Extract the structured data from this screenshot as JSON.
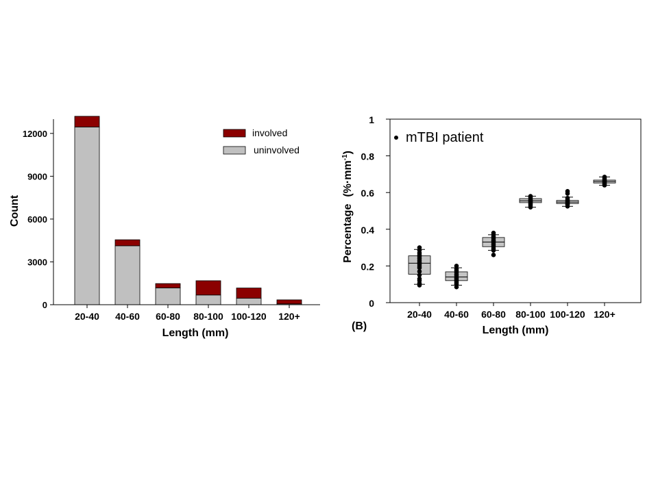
{
  "colors": {
    "involved": "#8b0000",
    "uninvolved": "#c0c0c0",
    "box": "#c4c4c4",
    "point": "#000000"
  },
  "chart_data": [
    {
      "type": "bar",
      "stacked": true,
      "categories": [
        "20-40",
        "40-60",
        "60-80",
        "80-100",
        "100-120",
        "120+"
      ],
      "series": [
        {
          "name": "uninvolved",
          "values": [
            12450,
            4130,
            1180,
            680,
            450,
            60
          ]
        },
        {
          "name": "involved",
          "values": [
            750,
            420,
            300,
            1000,
            720,
            280
          ]
        }
      ],
      "legend": [
        "involved",
        "uninvolved"
      ],
      "legend_position": "top-right",
      "xlabel": "Length (mm)",
      "ylabel": "Count",
      "ylim": [
        0,
        13000
      ],
      "yticks": [
        "0",
        "3000",
        "6000",
        "9000",
        "12000"
      ],
      "ytick_values": [
        0,
        3000,
        6000,
        9000,
        12000
      ]
    },
    {
      "type": "box",
      "panel_label": "(B)",
      "annotation": "mTBI patient",
      "categories": [
        "20-40",
        "40-60",
        "60-80",
        "80-100",
        "100-120",
        "120+"
      ],
      "boxes": [
        {
          "q1": 0.155,
          "median": 0.215,
          "q3": 0.255,
          "whisker_low": 0.1,
          "whisker_high": 0.29,
          "points": [
            0.3,
            0.285,
            0.27,
            0.26,
            0.25,
            0.24,
            0.23,
            0.22,
            0.21,
            0.2,
            0.19,
            0.17,
            0.15,
            0.13,
            0.12,
            0.105,
            0.095
          ]
        },
        {
          "q1": 0.12,
          "median": 0.14,
          "q3": 0.168,
          "whisker_low": 0.095,
          "whisker_high": 0.19,
          "points": [
            0.2,
            0.185,
            0.175,
            0.165,
            0.155,
            0.148,
            0.14,
            0.132,
            0.125,
            0.117,
            0.108,
            0.1,
            0.085
          ]
        },
        {
          "q1": 0.305,
          "median": 0.33,
          "q3": 0.355,
          "whisker_low": 0.285,
          "whisker_high": 0.37,
          "points": [
            0.38,
            0.37,
            0.36,
            0.35,
            0.34,
            0.335,
            0.325,
            0.315,
            0.305,
            0.295,
            0.285,
            0.26
          ]
        },
        {
          "q1": 0.545,
          "median": 0.555,
          "q3": 0.567,
          "whisker_low": 0.52,
          "whisker_high": 0.58,
          "points": [
            0.58,
            0.574,
            0.566,
            0.56,
            0.555,
            0.55,
            0.544,
            0.537,
            0.53,
            0.52
          ]
        },
        {
          "q1": 0.54,
          "median": 0.548,
          "q3": 0.557,
          "whisker_low": 0.525,
          "whisker_high": 0.575,
          "points": [
            0.607,
            0.595,
            0.57,
            0.562,
            0.555,
            0.55,
            0.545,
            0.54,
            0.535,
            0.525
          ]
        },
        {
          "q1": 0.652,
          "median": 0.66,
          "q3": 0.668,
          "whisker_low": 0.64,
          "whisker_high": 0.685,
          "points": [
            0.685,
            0.677,
            0.67,
            0.664,
            0.658,
            0.652,
            0.646,
            0.64
          ]
        }
      ],
      "xlabel": "Length (mm)",
      "ylabel": "Percentage",
      "ylabel_units": "(%·mm",
      "ylabel_sup": "-1",
      "ylabel_close": ")",
      "ylim": [
        0,
        1
      ],
      "yticks": [
        "0",
        "0.2",
        "0.4",
        "0.6",
        "0.8",
        "1"
      ],
      "ytick_values": [
        0,
        0.2,
        0.4,
        0.6,
        0.8,
        1
      ]
    }
  ]
}
